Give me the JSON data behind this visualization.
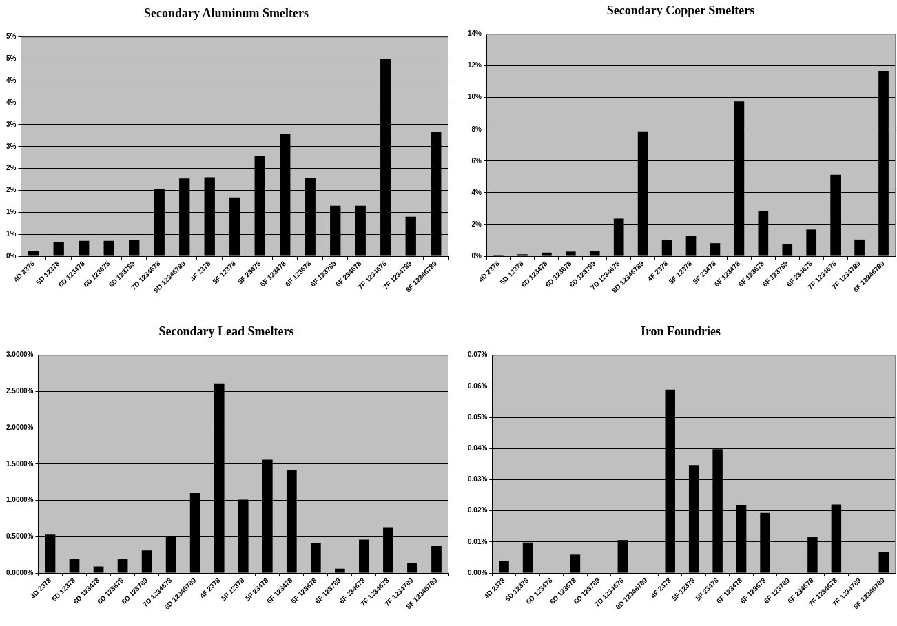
{
  "chart_data": [
    {
      "type": "bar",
      "title": "Secondary Aluminum Smelters",
      "categories": [
        "4D 2378",
        "5D 12378",
        "6D 123478",
        "6D 123678",
        "6D 123789",
        "7D 1234678",
        "8D 12346789",
        "4F 2378",
        "5F 12378",
        "5F 23478",
        "6F 123478",
        "6F 123678",
        "6F 123789",
        "6F 234678",
        "7F 1234678",
        "7F 1234789",
        "8F 12346789"
      ],
      "values": [
        0.12,
        0.33,
        0.35,
        0.35,
        0.37,
        1.53,
        1.77,
        1.8,
        1.34,
        2.28,
        2.79,
        1.78,
        1.15,
        1.15,
        4.49,
        0.9,
        2.83
      ],
      "color": "#000000",
      "ylim": [
        0,
        5
      ],
      "yticks": [
        {
          "value": 0,
          "label": "0%"
        },
        {
          "value": 0.5,
          "label": "1%"
        },
        {
          "value": 1,
          "label": "1%"
        },
        {
          "value": 1.5,
          "label": "2%"
        },
        {
          "value": 2,
          "label": "2%"
        },
        {
          "value": 2.5,
          "label": "3%"
        },
        {
          "value": 3,
          "label": "3%"
        },
        {
          "value": 3.5,
          "label": "4%"
        },
        {
          "value": 4,
          "label": "4%"
        },
        {
          "value": 4.5,
          "label": "5%"
        },
        {
          "value": 5,
          "label": "5%"
        }
      ],
      "grid": "y"
    },
    {
      "type": "bar",
      "title": "Secondary Copper Smelters",
      "categories": [
        "4D 2378",
        "5D 12378",
        "6D 123478",
        "6D 123678",
        "6D 123789",
        "7D 1234678",
        "8D 12346789",
        "4F 2378",
        "5F 12378",
        "5F 23478",
        "6F 123478",
        "6F 123678",
        "6F 123789",
        "6F 234678",
        "7F 1234678",
        "7F 1234789",
        "8F 12346789"
      ],
      "values": [
        0.05,
        0.12,
        0.23,
        0.29,
        0.32,
        2.37,
        7.87,
        1.0,
        1.3,
        0.82,
        9.76,
        2.84,
        0.75,
        1.68,
        5.14,
        1.05,
        11.68
      ],
      "color": "#000000",
      "ylim": [
        0,
        14
      ],
      "yticks": [
        {
          "value": 0,
          "label": "0%"
        },
        {
          "value": 2,
          "label": "2%"
        },
        {
          "value": 4,
          "label": "4%"
        },
        {
          "value": 6,
          "label": "6%"
        },
        {
          "value": 8,
          "label": "8%"
        },
        {
          "value": 10,
          "label": "10%"
        },
        {
          "value": 12,
          "label": "12%"
        },
        {
          "value": 14,
          "label": "14%"
        }
      ],
      "grid": "y"
    },
    {
      "type": "bar",
      "title": "Secondary Lead Smelters",
      "categories": [
        "4D 2378",
        "5D 12378",
        "6D 123478",
        "6D 123678",
        "6D 123789",
        "7D 1234678",
        "8D 12346789",
        "4F 2378",
        "5F 12378",
        "5F 23478",
        "6F 123478",
        "6F 123678",
        "6F 123789",
        "6F 234678",
        "7F 1234678",
        "7F 1234789",
        "8F 12346789"
      ],
      "values": [
        0.53,
        0.2,
        0.09,
        0.2,
        0.31,
        0.5,
        1.1,
        2.61,
        1.01,
        1.56,
        1.42,
        0.41,
        0.06,
        0.46,
        0.63,
        0.14,
        0.37
      ],
      "color": "#000000",
      "ylim": [
        0,
        3
      ],
      "yticks": [
        {
          "value": 0,
          "label": "0.0000%"
        },
        {
          "value": 0.5,
          "label": "0.5000%"
        },
        {
          "value": 1,
          "label": "1.0000%"
        },
        {
          "value": 1.5,
          "label": "1.5000%"
        },
        {
          "value": 2,
          "label": "2.0000%"
        },
        {
          "value": 2.5,
          "label": "2.5000%"
        },
        {
          "value": 3,
          "label": "3.0000%"
        }
      ],
      "grid": "y"
    },
    {
      "type": "bar",
      "title": "Iron Foundries",
      "categories": [
        "4D 2378",
        "5D 12378",
        "6D 123478",
        "6D 123678",
        "6D 123789",
        "7D 1234678",
        "8D 12346789",
        "4F 2378",
        "5F 12378",
        "5F 23478",
        "6F 123478",
        "6F 123678",
        "6F 123789",
        "6F 234678",
        "7F 1234678",
        "7F 1234789",
        "8F 12346789"
      ],
      "values": [
        0.0038,
        0.0098,
        0,
        0.0059,
        0,
        0.0106,
        0,
        0.0589,
        0.0347,
        0.0398,
        0.0217,
        0.0193,
        0,
        0.0115,
        0.022,
        0,
        0.0068
      ],
      "color": "#000000",
      "ylim": [
        0,
        0.07
      ],
      "yticks": [
        {
          "value": 0,
          "label": "0.00%"
        },
        {
          "value": 0.01,
          "label": "0.01%"
        },
        {
          "value": 0.02,
          "label": "0.02%"
        },
        {
          "value": 0.03,
          "label": "0.03%"
        },
        {
          "value": 0.04,
          "label": "0.04%"
        },
        {
          "value": 0.05,
          "label": "0.05%"
        },
        {
          "value": 0.06,
          "label": "0.06%"
        },
        {
          "value": 0.07,
          "label": "0.07%"
        }
      ],
      "grid": "y"
    }
  ]
}
